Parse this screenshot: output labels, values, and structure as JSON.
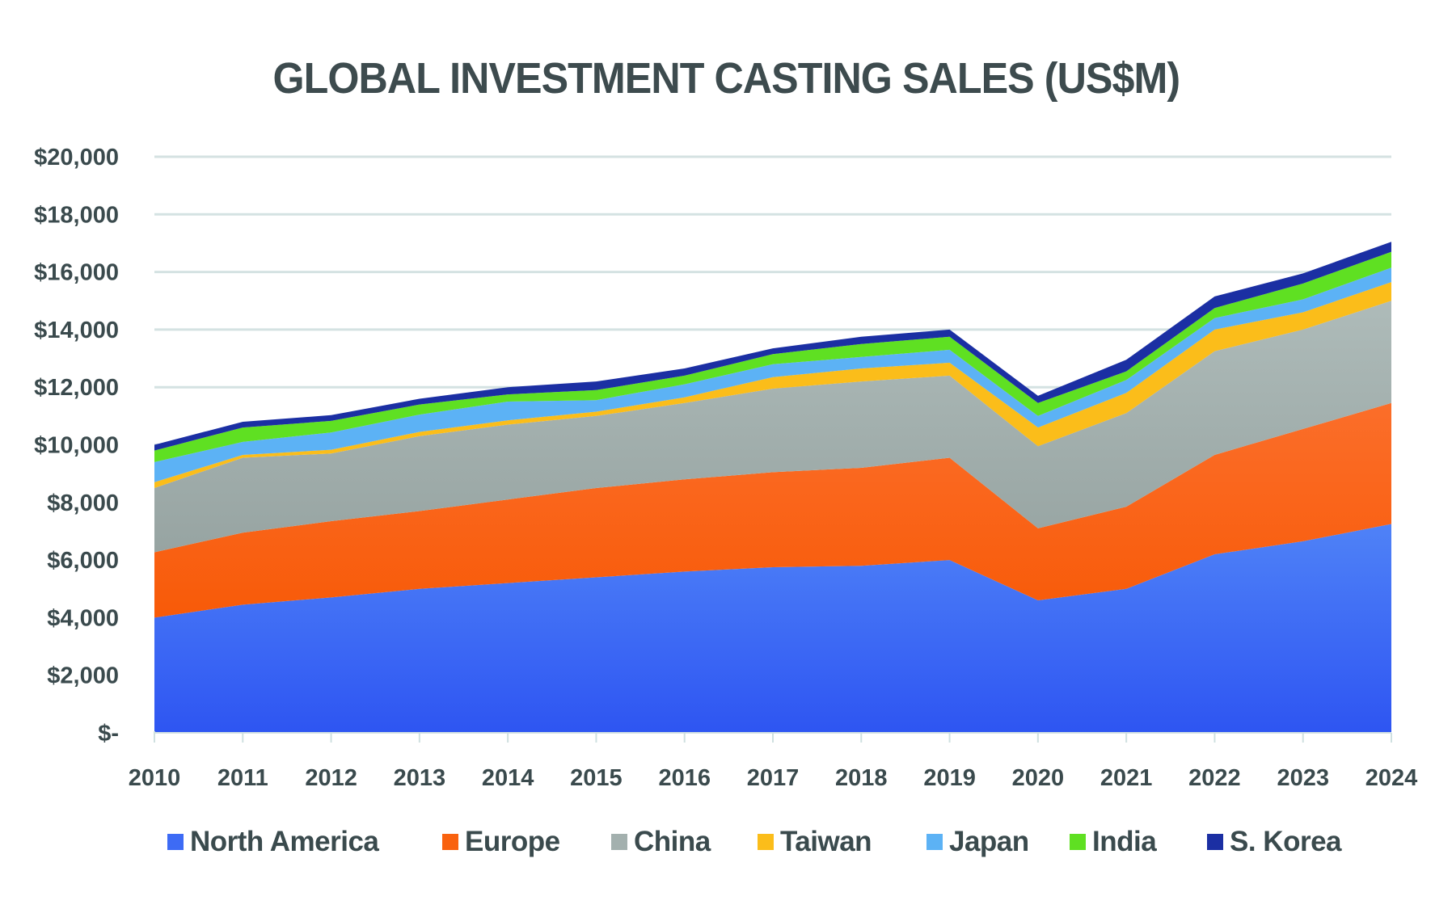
{
  "chart_data": {
    "type": "area",
    "stacked": true,
    "title": "GLOBAL INVESTMENT CASTING SALES (US$M)",
    "xlabel": "",
    "ylabel": "",
    "x": [
      "2010",
      "2011",
      "2012",
      "2013",
      "2014",
      "2015",
      "2016",
      "2017",
      "2018",
      "2019",
      "2020",
      "2021",
      "2022",
      "2023",
      "2024"
    ],
    "ylim": [
      0,
      20000
    ],
    "yticks": [
      0,
      2000,
      4000,
      6000,
      8000,
      10000,
      12000,
      14000,
      16000,
      18000,
      20000
    ],
    "ytick_labels": [
      "$-",
      "$2,000",
      "$4,000",
      "$6,000",
      "$8,000",
      "$10,000",
      "$12,000",
      "$14,000",
      "$16,000",
      "$18,000",
      "$20,000"
    ],
    "grid": true,
    "legend_position": "bottom",
    "series": [
      {
        "name": "North America",
        "color": "#3d6bf5",
        "values": [
          4000,
          4450,
          4700,
          5000,
          5200,
          5400,
          5600,
          5750,
          5800,
          6000,
          4600,
          5000,
          6200,
          6650,
          7250
        ]
      },
      {
        "name": "Europe",
        "color": "#f9620f",
        "values": [
          2270,
          2500,
          2650,
          2700,
          2900,
          3100,
          3200,
          3300,
          3400,
          3550,
          2500,
          2850,
          3450,
          3900,
          4200
        ]
      },
      {
        "name": "China",
        "color": "#a3b0ae",
        "values": [
          2230,
          2600,
          2350,
          2600,
          2600,
          2500,
          2650,
          2900,
          3000,
          2850,
          2850,
          3250,
          3600,
          3450,
          3550
        ]
      },
      {
        "name": "Taiwan",
        "color": "#fbbd1a",
        "values": [
          200,
          100,
          130,
          150,
          150,
          150,
          200,
          400,
          450,
          450,
          650,
          700,
          750,
          600,
          650
        ]
      },
      {
        "name": "Japan",
        "color": "#5cb2f5",
        "values": [
          700,
          450,
          600,
          600,
          650,
          400,
          450,
          450,
          400,
          450,
          400,
          450,
          400,
          450,
          500
        ]
      },
      {
        "name": "India",
        "color": "#5fe022",
        "values": [
          400,
          500,
          400,
          350,
          250,
          350,
          300,
          350,
          450,
          450,
          450,
          300,
          350,
          550,
          550
        ]
      },
      {
        "name": "S. Korea",
        "color": "#1b2fa3",
        "values": [
          200,
          200,
          200,
          200,
          250,
          300,
          250,
          200,
          250,
          250,
          250,
          400,
          400,
          350,
          350
        ]
      }
    ]
  }
}
